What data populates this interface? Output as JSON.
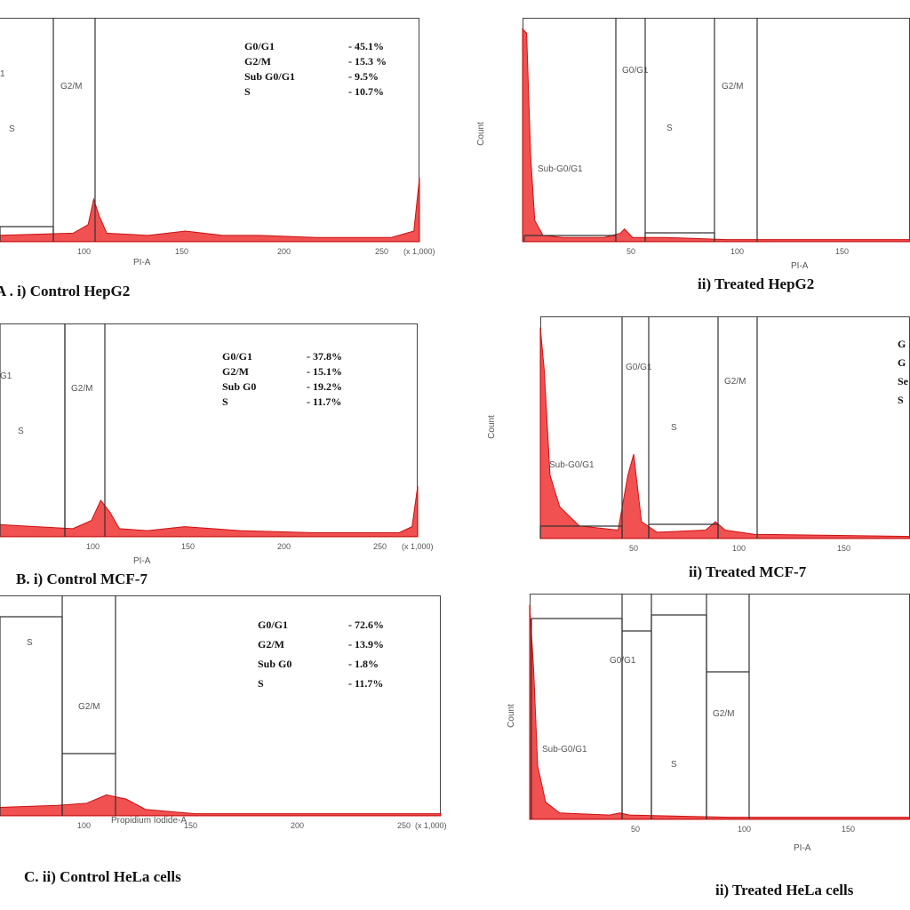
{
  "colors": {
    "histogram_fill": "#ee3333",
    "frame": "#444444",
    "gate": "#333333"
  },
  "chart_data": [
    {
      "type": "histogram",
      "title": "A . i) Control HepG2",
      "xlabel": "PI-A",
      "ylabel": "",
      "xticks": [
        "100",
        "150",
        "200",
        "250",
        "(x 1,000)"
      ],
      "yticks": [],
      "gate_labels": [
        "1",
        "S",
        "G2/M"
      ],
      "stats": [
        [
          "G0/G1",
          "- 45.1%"
        ],
        [
          "G2/M",
          "- 15.3 %"
        ],
        [
          "Sub G0/G1",
          "- 9.5%"
        ],
        [
          "S",
          "- 10.7%"
        ]
      ],
      "xlim": [
        40,
        265
      ],
      "ylim": [
        0,
        100
      ],
      "bins": [
        [
          40,
          3
        ],
        [
          80,
          4
        ],
        [
          88,
          8
        ],
        [
          91,
          20
        ],
        [
          94,
          12
        ],
        [
          98,
          4
        ],
        [
          120,
          3
        ],
        [
          140,
          5
        ],
        [
          160,
          3
        ],
        [
          180,
          3
        ],
        [
          210,
          2
        ],
        [
          250,
          2
        ],
        [
          262,
          5
        ],
        [
          265,
          30
        ]
      ]
    },
    {
      "type": "histogram",
      "title": "ii) Treated HepG2",
      "xlabel": "PI-A",
      "ylabel": "Count",
      "xticks": [
        "50",
        "100",
        "150"
      ],
      "yticks": [],
      "gate_labels": [
        "G0/G1",
        "S",
        "G2/M",
        "Sub-G0/G1"
      ],
      "stats": [],
      "xlim": [
        0,
        190
      ],
      "ylim": [
        0,
        100
      ],
      "bins": [
        [
          0,
          100
        ],
        [
          2,
          98
        ],
        [
          4,
          40
        ],
        [
          6,
          10
        ],
        [
          10,
          3
        ],
        [
          20,
          2
        ],
        [
          40,
          2
        ],
        [
          48,
          4
        ],
        [
          50,
          6
        ],
        [
          54,
          2
        ],
        [
          70,
          2
        ],
        [
          100,
          1
        ],
        [
          190,
          1
        ]
      ]
    },
    {
      "type": "histogram",
      "title": "B. i) Control MCF-7",
      "xlabel": "PI-A",
      "ylabel": "",
      "xticks": [
        "100",
        "150",
        "200",
        "250",
        "(x 1,000)"
      ],
      "yticks": [],
      "gate_labels": [
        "G1",
        "S",
        "G2/M"
      ],
      "stats": [
        [
          "G0/G1",
          "- 37.8%"
        ],
        [
          "G2/M",
          "- 15.1%"
        ],
        [
          "Sub G0",
          "- 19.2%"
        ],
        [
          "S",
          "- 11.7%"
        ]
      ],
      "xlim": [
        40,
        265
      ],
      "ylim": [
        0,
        100
      ],
      "bins": [
        [
          40,
          6
        ],
        [
          80,
          4
        ],
        [
          90,
          8
        ],
        [
          95,
          18
        ],
        [
          100,
          12
        ],
        [
          105,
          4
        ],
        [
          120,
          3
        ],
        [
          140,
          5
        ],
        [
          170,
          3
        ],
        [
          210,
          2
        ],
        [
          255,
          2
        ],
        [
          262,
          5
        ],
        [
          265,
          25
        ]
      ]
    },
    {
      "type": "histogram",
      "title": "ii) Treated MCF-7",
      "xlabel": "",
      "ylabel": "Count",
      "xticks": [
        "50",
        "100",
        "150"
      ],
      "yticks": [],
      "gate_labels": [
        "G0/G1",
        "S",
        "G2/M",
        "Sub-G0/G1"
      ],
      "stats": [
        [
          "G",
          ""
        ],
        [
          "G",
          ""
        ],
        [
          "Se",
          ""
        ],
        [
          "S",
          ""
        ]
      ],
      "xlim": [
        0,
        190
      ],
      "ylim": [
        0,
        100
      ],
      "bins": [
        [
          0,
          100
        ],
        [
          2,
          80
        ],
        [
          5,
          30
        ],
        [
          10,
          15
        ],
        [
          20,
          6
        ],
        [
          40,
          4
        ],
        [
          45,
          30
        ],
        [
          48,
          40
        ],
        [
          52,
          8
        ],
        [
          60,
          3
        ],
        [
          85,
          4
        ],
        [
          90,
          8
        ],
        [
          95,
          4
        ],
        [
          110,
          2
        ],
        [
          190,
          1
        ]
      ]
    },
    {
      "type": "histogram",
      "title": "C. ii) Control HeLa cells",
      "xlabel": "Propidium Iodide-A",
      "ylabel": "",
      "xticks": [
        "100",
        "150",
        "200",
        "250",
        "(x 1,000)"
      ],
      "yticks": [],
      "gate_labels": [
        "S",
        "G2/M"
      ],
      "stats": [
        [
          "G0/G1",
          "- 72.6%"
        ],
        [
          "G2/M",
          "- 13.9%"
        ],
        [
          "Sub G0",
          "- 1.8%"
        ],
        [
          "S",
          "- 11.7%"
        ]
      ],
      "xlim": [
        40,
        265
      ],
      "ylim": [
        0,
        100
      ],
      "bins": [
        [
          40,
          4
        ],
        [
          70,
          5
        ],
        [
          85,
          6
        ],
        [
          95,
          10
        ],
        [
          105,
          8
        ],
        [
          115,
          3
        ],
        [
          140,
          1
        ],
        [
          265,
          1
        ]
      ]
    },
    {
      "type": "histogram",
      "title": "ii) Treated HeLa cells",
      "xlabel": "PI-A",
      "ylabel": "Count",
      "xticks": [
        "50",
        "100",
        "150"
      ],
      "yticks": [],
      "gate_labels": [
        "G0/G1",
        "S",
        "G2/M",
        "Sub-G0/G1"
      ],
      "stats": [],
      "xlim": [
        0,
        190
      ],
      "ylim": [
        0,
        100
      ],
      "bins": [
        [
          0,
          100
        ],
        [
          2,
          70
        ],
        [
          4,
          25
        ],
        [
          8,
          8
        ],
        [
          15,
          3
        ],
        [
          40,
          2
        ],
        [
          45,
          3
        ],
        [
          50,
          2
        ],
        [
          100,
          1
        ],
        [
          190,
          1
        ]
      ]
    }
  ]
}
